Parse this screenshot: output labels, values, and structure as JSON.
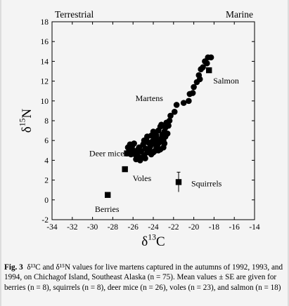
{
  "caption": {
    "figure_label": "Fig. 3",
    "text": "δ¹³C and δ¹⁵N values for live martens captured in the autumns of 1992, 1993, and 1994, on Chichagof Island, Southeast Alaska (n = 75). Mean values ± SE are given for berries (n = 8), squirrels (n = 8), deer mice (n = 26), voles (n = 23), and salmon (n = 18)"
  },
  "chart_data": {
    "type": "scatter",
    "title": "",
    "xlabel": "δ13C",
    "ylabel": "δ15N",
    "xlim": [
      -34,
      -14
    ],
    "ylim": [
      -2,
      18
    ],
    "xticks": [
      -34,
      -32,
      -30,
      -28,
      -26,
      -24,
      -22,
      -20,
      -18,
      -16,
      -14
    ],
    "yticks": [
      -2,
      0,
      2,
      4,
      6,
      8,
      10,
      12,
      14,
      16,
      18
    ],
    "grid": false,
    "region_labels": [
      "Terrestrial",
      "Marine"
    ],
    "series": [
      {
        "name": "Martens",
        "marker": "circle",
        "points": [
          [
            -18.3,
            14.4
          ],
          [
            -18.6,
            14.4
          ],
          [
            -18.7,
            13.8
          ],
          [
            -18.9,
            14.0
          ],
          [
            -19.1,
            13.4
          ],
          [
            -19.3,
            13.2
          ],
          [
            -19.5,
            12.6
          ],
          [
            -19.4,
            12.2
          ],
          [
            -19.7,
            11.9
          ],
          [
            -20.0,
            11.4
          ],
          [
            -20.1,
            10.8
          ],
          [
            -20.4,
            10.7
          ],
          [
            -20.5,
            10.0
          ],
          [
            -21.0,
            9.8
          ],
          [
            -21.7,
            9.6
          ],
          [
            -21.9,
            8.9
          ],
          [
            -22.3,
            8.5
          ],
          [
            -22.4,
            8.0
          ],
          [
            -22.7,
            7.8
          ],
          [
            -22.8,
            7.3
          ],
          [
            -22.9,
            6.9
          ],
          [
            -23.1,
            6.6
          ],
          [
            -23.3,
            7.4
          ],
          [
            -23.5,
            7.0
          ],
          [
            -23.7,
            6.5
          ],
          [
            -23.6,
            6.0
          ],
          [
            -23.4,
            5.8
          ],
          [
            -23.2,
            6.2
          ],
          [
            -22.9,
            5.7
          ],
          [
            -23.0,
            5.3
          ],
          [
            -23.3,
            5.1
          ],
          [
            -23.5,
            5.0
          ],
          [
            -23.8,
            5.6
          ],
          [
            -23.9,
            6.3
          ],
          [
            -24.0,
            6.9
          ],
          [
            -24.2,
            6.5
          ],
          [
            -24.1,
            5.9
          ],
          [
            -24.3,
            5.4
          ],
          [
            -24.5,
            5.8
          ],
          [
            -24.4,
            5.1
          ],
          [
            -24.6,
            4.8
          ],
          [
            -24.8,
            5.2
          ],
          [
            -24.9,
            4.5
          ],
          [
            -25.1,
            4.3
          ],
          [
            -25.3,
            4.0
          ],
          [
            -25.5,
            4.4
          ],
          [
            -25.7,
            4.1
          ],
          [
            -25.2,
            4.9
          ],
          [
            -25.4,
            5.3
          ],
          [
            -25.6,
            4.9
          ],
          [
            -25.8,
            4.6
          ],
          [
            -26.0,
            5.0
          ],
          [
            -26.2,
            4.6
          ],
          [
            -26.4,
            4.9
          ],
          [
            -26.1,
            5.4
          ],
          [
            -26.5,
            5.3
          ],
          [
            -26.3,
            5.6
          ],
          [
            -25.9,
            5.7
          ],
          [
            -24.7,
            6.1
          ],
          [
            -23.2,
            7.6
          ],
          [
            -23.0,
            6.0
          ],
          [
            -22.8,
            6.4
          ],
          [
            -24.2,
            4.6
          ],
          [
            -24.0,
            4.8
          ],
          [
            -24.8,
            4.2
          ],
          [
            -25.0,
            5.6
          ],
          [
            -24.6,
            6.4
          ],
          [
            -23.9,
            4.9
          ],
          [
            -23.7,
            5.2
          ],
          [
            -26.6,
            4.7
          ],
          [
            -22.6,
            6.7
          ],
          [
            -23.6,
            5.5
          ],
          [
            -24.9,
            6.0
          ],
          [
            -25.5,
            5.1
          ],
          [
            -22.5,
            7.5
          ]
        ]
      },
      {
        "name": "Means",
        "marker": "square",
        "points": [
          {
            "label": "Berries",
            "x": -28.5,
            "y": 0.5
          },
          {
            "label": "Voles",
            "x": -26.8,
            "y": 3.1
          },
          {
            "label": "Deer mice",
            "x": -26.6,
            "y": 4.7
          },
          {
            "label": "Squirrels",
            "x": -21.5,
            "y": 1.8,
            "se": 1.0
          },
          {
            "label": "Salmon",
            "x": -18.5,
            "y": 13.1
          }
        ]
      }
    ]
  }
}
